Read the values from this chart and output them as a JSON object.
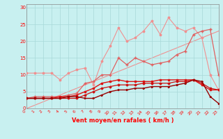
{
  "xlabel": "Vent moyen/en rafales ( km/h )",
  "background_color": "#c8f0f0",
  "grid_color": "#a8d8d8",
  "x": [
    0,
    1,
    2,
    3,
    4,
    5,
    6,
    7,
    8,
    9,
    10,
    11,
    12,
    13,
    14,
    15,
    16,
    17,
    18,
    19,
    20,
    21,
    22,
    23
  ],
  "ylim": [
    0,
    31
  ],
  "xlim": [
    0,
    23
  ],
  "yticks": [
    0,
    5,
    10,
    15,
    20,
    25,
    30
  ],
  "line1": [
    10.5,
    10.5,
    10.5,
    10.5,
    8.5,
    10.5,
    11.5,
    12,
    7,
    14,
    18.5,
    24,
    20,
    21,
    23,
    26,
    22,
    27,
    24,
    23,
    24,
    21,
    10,
    5.5
  ],
  "line2": [
    3,
    3.5,
    3.5,
    3.5,
    3.5,
    4,
    4.5,
    7.5,
    8,
    10,
    10,
    15,
    13,
    15,
    14,
    13,
    13.5,
    14,
    16,
    17,
    22,
    23,
    23.5,
    10
  ],
  "line3": [
    3,
    3,
    3,
    3,
    3.5,
    3.5,
    4,
    5,
    6,
    7.5,
    8,
    8.5,
    8,
    8,
    8,
    8,
    8.5,
    8.5,
    8.5,
    8.5,
    8.5,
    7,
    5.5,
    5.5
  ],
  "line4": [
    3,
    3,
    3,
    3,
    3,
    3,
    3,
    4,
    5,
    6,
    6.5,
    7,
    7,
    7,
    7.5,
    7.5,
    7.5,
    7.5,
    8,
    8,
    8.5,
    7.5,
    6,
    5.5
  ],
  "line5": [
    3,
    3,
    3,
    3,
    3,
    3.5,
    3.5,
    3,
    3,
    4,
    5,
    5.5,
    5.5,
    6,
    6,
    6.5,
    6.5,
    6.5,
    7,
    7.5,
    8.5,
    8,
    3.5,
    1.5
  ],
  "color_light_pink": "#f09090",
  "color_pink": "#e06060",
  "color_red": "#cc1010",
  "color_dark_red": "#990000",
  "color_medium_red": "#dd1111"
}
